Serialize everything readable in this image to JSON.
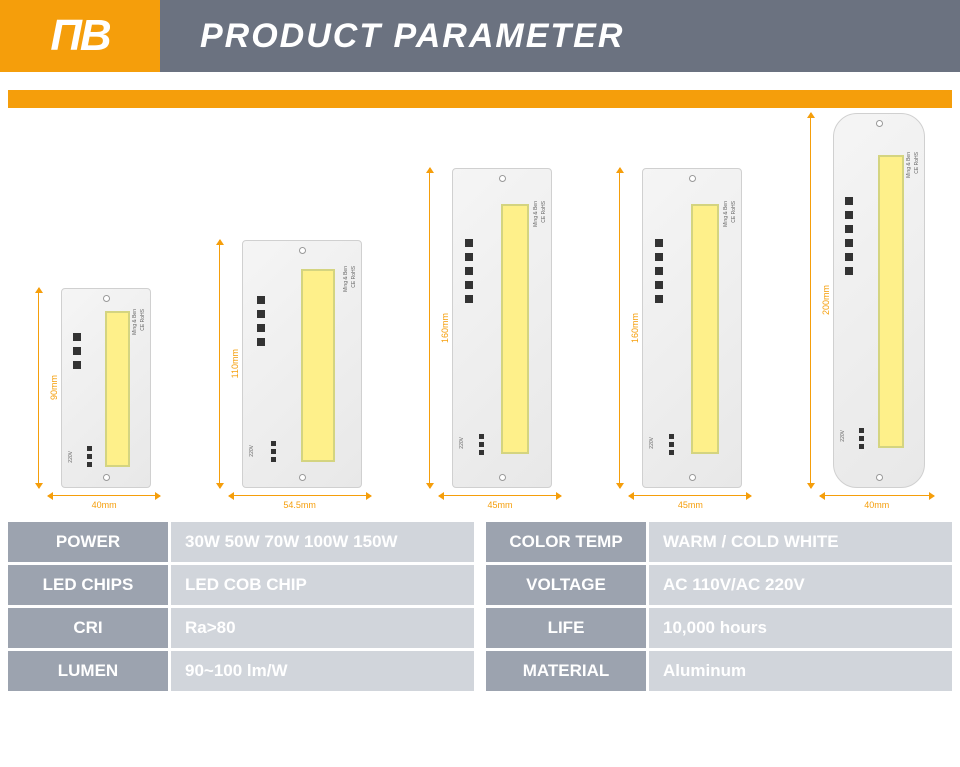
{
  "header": {
    "logo": "ΠB",
    "title": "PRODUCT PARAMETER"
  },
  "colors": {
    "accent": "#f59e0b",
    "header_gray": "#6b7280",
    "label_bg": "#9ca3af",
    "value_bg": "#d1d5db",
    "led": "#fef08a"
  },
  "products": [
    {
      "width_mm": "40mm",
      "height_mm": "90mm",
      "chip_w": 90,
      "chip_h": 200,
      "rounded": false
    },
    {
      "width_mm": "54.5mm",
      "height_mm": "110mm",
      "chip_w": 120,
      "chip_h": 248,
      "rounded": false
    },
    {
      "width_mm": "45mm",
      "height_mm": "160mm",
      "chip_w": 100,
      "chip_h": 320,
      "rounded": false
    },
    {
      "width_mm": "45mm",
      "height_mm": "160mm",
      "chip_w": 100,
      "chip_h": 320,
      "rounded": false
    },
    {
      "width_mm": "40mm",
      "height_mm": "200mm",
      "chip_w": 92,
      "chip_h": 375,
      "rounded": true
    }
  ],
  "chip_markings": {
    "cert": "CE RoHS",
    "brand": "Ming & Ben",
    "voltage": "220V"
  },
  "specs_left": [
    {
      "label": "POWER",
      "value": "30W 50W 70W 100W 150W"
    },
    {
      "label": "LED CHIPS",
      "value": "LED COB CHIP"
    },
    {
      "label": "CRI",
      "value": "Ra>80"
    },
    {
      "label": "LUMEN",
      "value": "90~100  lm/W"
    }
  ],
  "specs_right": [
    {
      "label": "COLOR  TEMP",
      "value": "WARM / COLD WHITE"
    },
    {
      "label": "VOLTAGE",
      "value": "AC 110V/AC 220V"
    },
    {
      "label": "LIFE",
      "value": "10,000 hours"
    },
    {
      "label": "MATERIAL",
      "value": "Aluminum"
    }
  ]
}
